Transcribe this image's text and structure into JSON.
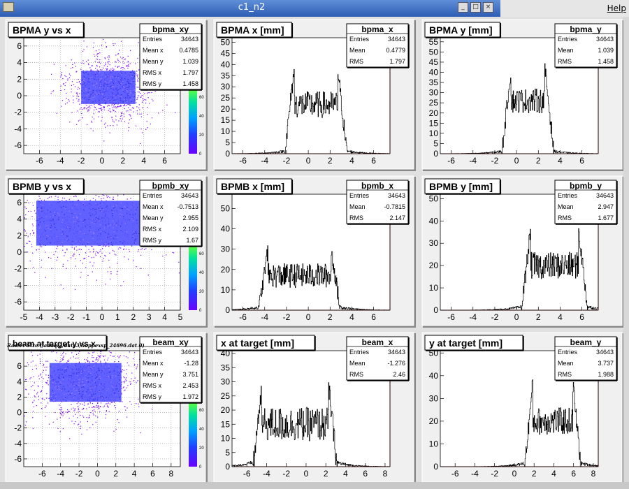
{
  "window": {
    "title": "c1_n2",
    "help_menu": "Help",
    "raster_caption": "Raster Size (/adaql2/data3/happexsp_24696.dat.0)"
  },
  "colors": {
    "pad": "#f0f0f0",
    "frame": "#e0e0e0",
    "hist": "#000000",
    "axis_line": "#b00000",
    "scatter": "#7a00ff",
    "dense": "#5050ff"
  },
  "pads": [
    {
      "title": "BPMA y vs x",
      "type": "scatter2d",
      "stats": {
        "name": "bpma_xy",
        "rows": [
          [
            "Entries",
            "34643"
          ],
          [
            "Mean x",
            "0.4785"
          ],
          [
            "Mean y",
            "1.039"
          ],
          [
            "RMS x",
            "1.797"
          ],
          [
            "RMS y",
            "1.458"
          ]
        ]
      },
      "xlim": [
        -7.5,
        7.5
      ],
      "ylim": [
        -7,
        7
      ],
      "xticks": [
        "-6",
        "-4",
        "-2",
        "0",
        "2",
        "4",
        "6"
      ],
      "yticks": [
        "-6",
        "-4",
        "-2",
        "0",
        "2",
        "4",
        "6"
      ],
      "dense_box": {
        "x": [
          -2,
          3.2
        ],
        "y": [
          -1,
          3
        ]
      },
      "palette_ticks": [
        "0",
        "20",
        "40",
        "60"
      ]
    },
    {
      "title": "BPMA x [mm]",
      "type": "hist1d",
      "stats": {
        "name": "bpma_x",
        "rows": [
          [
            "Entries",
            "34643"
          ],
          [
            "Mean",
            "0.4779"
          ],
          [
            "RMS",
            "1.797"
          ]
        ]
      },
      "xlim": [
        -7,
        7.5
      ],
      "ylim": [
        0,
        52
      ],
      "xticks": [
        "-6",
        "-4",
        "-2",
        "0",
        "2",
        "4",
        "6"
      ],
      "yticks": [
        "0",
        "5",
        "10",
        "15",
        "20",
        "25",
        "30",
        "35",
        "40",
        "45",
        "50"
      ],
      "shape": {
        "edge_lo": -1.8,
        "edge_hi": 3.2,
        "plateau": 22,
        "peak": 38,
        "tail": 1.2
      }
    },
    {
      "title": "BPMA y [mm]",
      "type": "hist1d",
      "stats": {
        "name": "bpma_y",
        "rows": [
          [
            "Entries",
            "34643"
          ],
          [
            "Mean",
            "1.039"
          ],
          [
            "RMS",
            "1.458"
          ]
        ]
      },
      "xlim": [
        -7,
        7.5
      ],
      "ylim": [
        0,
        57
      ],
      "xticks": [
        "-6",
        "-4",
        "-2",
        "0",
        "2",
        "4",
        "6"
      ],
      "yticks": [
        "0",
        "5",
        "10",
        "15",
        "20",
        "25",
        "30",
        "35",
        "40",
        "45",
        "50",
        "55"
      ],
      "shape": {
        "edge_lo": -1.0,
        "edge_hi": 3.1,
        "plateau": 26,
        "peak": 42,
        "tail": 1.2
      }
    },
    {
      "title": "BPMB y vs x",
      "type": "scatter2d",
      "stats": {
        "name": "bpmb_xy",
        "rows": [
          [
            "Entries",
            "34643"
          ],
          [
            "Mean x",
            "-0.7513"
          ],
          [
            "Mean y",
            "2.955"
          ],
          [
            "RMS x",
            "2.109"
          ],
          [
            "RMS y",
            "1.67"
          ]
        ]
      },
      "xlim": [
        -5,
        5
      ],
      "ylim": [
        -7,
        7
      ],
      "xticks": [
        "-5",
        "-4",
        "-3",
        "-2",
        "-1",
        "0",
        "1",
        "2",
        "3",
        "4",
        "5"
      ],
      "yticks": [
        "-6",
        "-4",
        "-2",
        "0",
        "2",
        "4",
        "6"
      ],
      "dense_box": {
        "x": [
          -4.2,
          2.6
        ],
        "y": [
          0.8,
          6.2
        ]
      },
      "palette_ticks": [
        "0",
        "20",
        "40",
        "60"
      ]
    },
    {
      "title": "BPMB x [mm]",
      "type": "hist1d",
      "stats": {
        "name": "bpmb_x",
        "rows": [
          [
            "Entries",
            "34643"
          ],
          [
            "Mean",
            "-0.7815"
          ],
          [
            "RMS",
            "2.147"
          ]
        ]
      },
      "xlim": [
        -7,
        7.5
      ],
      "ylim": [
        0,
        57
      ],
      "xticks": [
        "-6",
        "-4",
        "-2",
        "0",
        "2",
        "4",
        "6"
      ],
      "yticks": [
        "0",
        "10",
        "20",
        "30",
        "40",
        "50"
      ],
      "shape": {
        "edge_lo": -4.2,
        "edge_hi": 2.6,
        "plateau": 17,
        "peak": 30,
        "tail": 1.5
      }
    },
    {
      "title": "BPMB y [mm]",
      "type": "hist1d",
      "stats": {
        "name": "bpmb_y",
        "rows": [
          [
            "Entries",
            "34643"
          ],
          [
            "Mean",
            "2.947"
          ],
          [
            "RMS",
            "1.677"
          ]
        ]
      },
      "xlim": [
        -7,
        7.5
      ],
      "ylim": [
        0,
        52
      ],
      "xticks": [
        "-6",
        "-4",
        "-2",
        "0",
        "2",
        "4",
        "6"
      ],
      "yticks": [
        "0",
        "10",
        "20",
        "30",
        "40",
        "50"
      ],
      "shape": {
        "edge_lo": 0.8,
        "edge_hi": 6.2,
        "plateau": 20,
        "peak": 36,
        "tail": 1.5
      }
    },
    {
      "title": "beam at target y vs x",
      "type": "scatter2d",
      "stats": {
        "name": "beam_xy",
        "rows": [
          [
            "Entries",
            "34643"
          ],
          [
            "Mean x",
            "-1.28"
          ],
          [
            "Mean y",
            "3.751"
          ],
          [
            "RMS x",
            "2.453"
          ],
          [
            "RMS y",
            "1.972"
          ]
        ]
      },
      "xlim": [
        -8,
        9
      ],
      "ylim": [
        -7,
        8
      ],
      "xticks": [
        "-6",
        "-4",
        "-2",
        "0",
        "2",
        "4",
        "6",
        "8"
      ],
      "yticks": [
        "-6",
        "-4",
        "-2",
        "0",
        "2",
        "4",
        "6"
      ],
      "dense_box": {
        "x": [
          -5.2,
          2.6
        ],
        "y": [
          1.4,
          6.4
        ]
      },
      "palette_ticks": [
        "0",
        "20",
        "40",
        "60"
      ]
    },
    {
      "title": "x at target [mm]",
      "type": "hist1d",
      "stats": {
        "name": "beam_x",
        "rows": [
          [
            "Entries",
            "34643"
          ],
          [
            "Mean",
            "-1.276"
          ],
          [
            "RMS",
            "2.46"
          ]
        ]
      },
      "xlim": [
        -7.5,
        8.5
      ],
      "ylim": [
        0,
        41
      ],
      "xticks": [
        "-6",
        "-4",
        "-2",
        "0",
        "2",
        "4",
        "6",
        "8"
      ],
      "yticks": [
        "0",
        "5",
        "10",
        "15",
        "20",
        "25",
        "30",
        "35",
        "40"
      ],
      "shape": {
        "edge_lo": -5.0,
        "edge_hi": 2.8,
        "plateau": 15,
        "peak": 28,
        "tail": 1.5
      }
    },
    {
      "title": "y at target [mm]",
      "type": "hist1d",
      "stats": {
        "name": "beam_y",
        "rows": [
          [
            "Entries",
            "34643"
          ],
          [
            "Mean",
            "3.737"
          ],
          [
            "RMS",
            "1.988"
          ]
        ]
      },
      "xlim": [
        -7.5,
        8.5
      ],
      "ylim": [
        0,
        51
      ],
      "xticks": [
        "-6",
        "-4",
        "-2",
        "0",
        "2",
        "4",
        "6",
        "8"
      ],
      "yticks": [
        "0",
        "10",
        "20",
        "30",
        "40",
        "50"
      ],
      "shape": {
        "edge_lo": 1.4,
        "edge_hi": 6.4,
        "plateau": 20,
        "peak": 38,
        "tail": 1.5
      }
    }
  ]
}
